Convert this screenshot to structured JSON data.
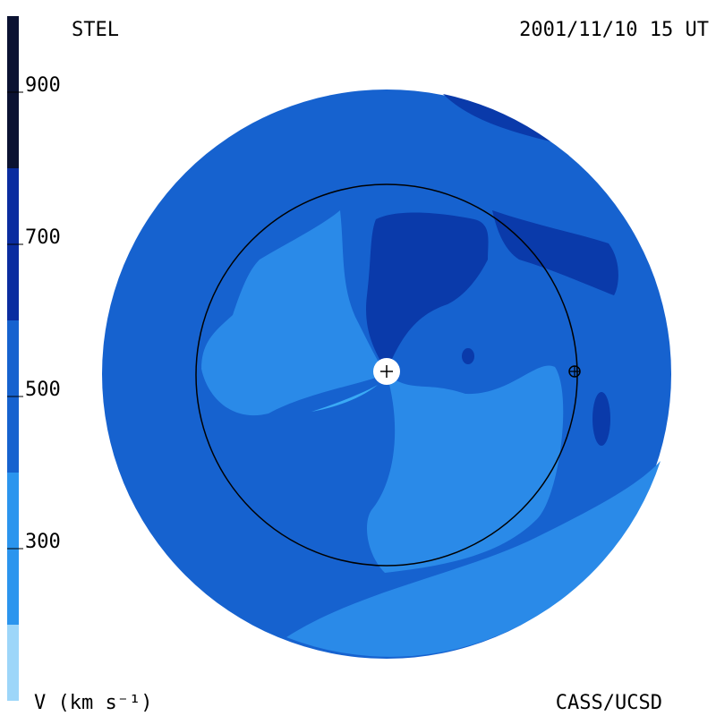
{
  "header": {
    "left": "STEL",
    "right": "2001/11/10 15 UT"
  },
  "footer": {
    "left": "V (km s⁻¹)",
    "right": "CASS/UCSD"
  },
  "colorbar": {
    "range": [
      100,
      1000
    ],
    "ticks": [
      300,
      500,
      700,
      900
    ],
    "bands": [
      {
        "from": 100,
        "to": 200,
        "color": "#9dd6f9"
      },
      {
        "from": 200,
        "to": 400,
        "color": "#2b95ee"
      },
      {
        "from": 400,
        "to": 600,
        "color": "#1662cf"
      },
      {
        "from": 600,
        "to": 800,
        "color": "#0a2ca0"
      },
      {
        "from": 800,
        "to": 1000,
        "color": "#0b1232"
      }
    ]
  }
}
